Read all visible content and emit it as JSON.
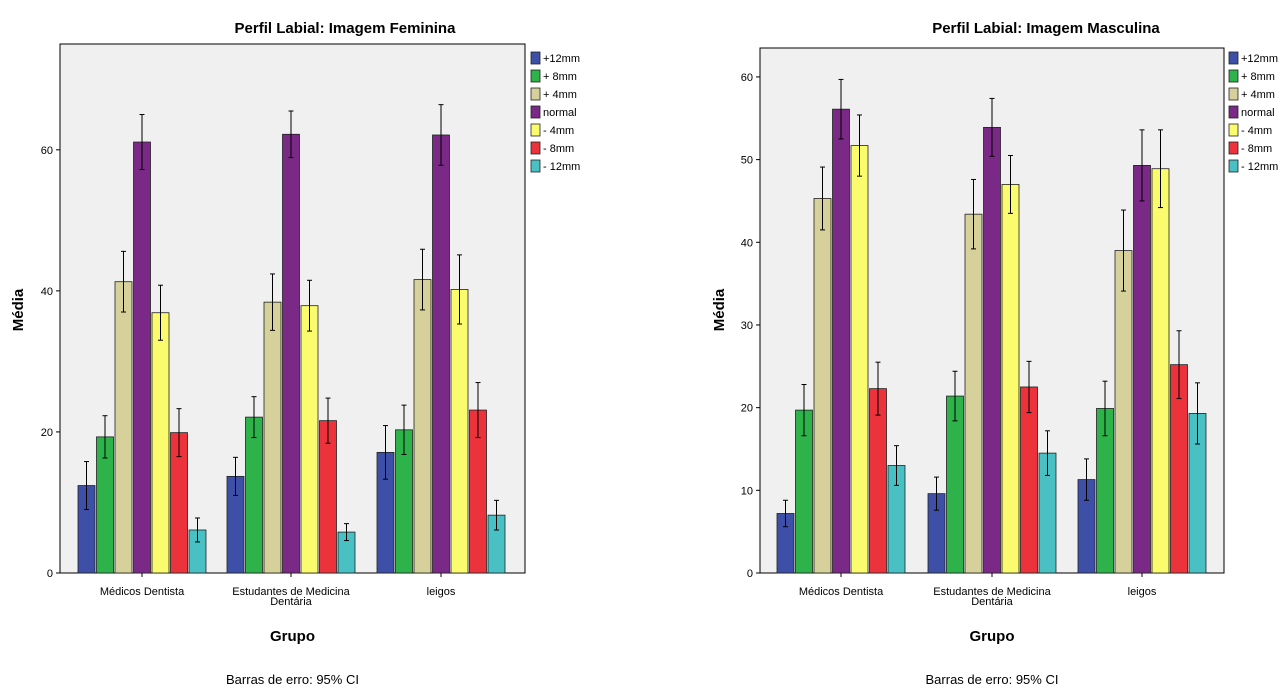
{
  "chart_data": [
    {
      "type": "bar",
      "title": "Perfil Labial: Imagem Feminina",
      "xlabel": "Grupo",
      "ylabel": "Média",
      "footnote": "Barras de erro: 95% CI",
      "ylim": [
        0,
        75
      ],
      "yticks": [
        0,
        20,
        40,
        60
      ],
      "categories": [
        [
          "Médicos Dentista"
        ],
        [
          "Estudantes de Medicina",
          "Dentária"
        ],
        [
          "leigos"
        ]
      ],
      "legend": "top-right",
      "grid": false,
      "series": [
        {
          "name": "+12mm",
          "color": "#3d4fa6",
          "values": [
            12.4,
            13.7,
            17.1
          ],
          "ci_low": [
            9.0,
            11.0,
            13.3
          ],
          "ci_high": [
            15.8,
            16.4,
            20.9
          ]
        },
        {
          "name": "+ 8mm",
          "color": "#2db34a",
          "values": [
            19.3,
            22.1,
            20.3
          ],
          "ci_low": [
            16.3,
            19.2,
            16.8
          ],
          "ci_high": [
            22.3,
            25.0,
            23.8
          ]
        },
        {
          "name": "+ 4mm",
          "color": "#d6d19a",
          "values": [
            41.3,
            38.4,
            41.6
          ],
          "ci_low": [
            37.0,
            34.4,
            37.3
          ],
          "ci_high": [
            45.6,
            42.4,
            45.9
          ]
        },
        {
          "name": "normal",
          "color": "#7a2a86",
          "values": [
            61.1,
            62.2,
            62.1
          ],
          "ci_low": [
            57.2,
            58.9,
            57.8
          ],
          "ci_high": [
            65.0,
            65.5,
            66.4
          ]
        },
        {
          "name": "- 4mm",
          "color": "#fbfb6e",
          "values": [
            36.9,
            37.9,
            40.2
          ],
          "ci_low": [
            33.0,
            34.3,
            35.3
          ],
          "ci_high": [
            40.8,
            41.5,
            45.1
          ]
        },
        {
          "name": "- 8mm",
          "color": "#ec333b",
          "values": [
            19.9,
            21.6,
            23.1
          ],
          "ci_low": [
            16.5,
            18.4,
            19.2
          ],
          "ci_high": [
            23.3,
            24.8,
            27.0
          ]
        },
        {
          "name": "- 12mm",
          "color": "#48c0c4",
          "values": [
            6.1,
            5.8,
            8.2
          ],
          "ci_low": [
            4.4,
            4.6,
            6.1
          ],
          "ci_high": [
            7.8,
            7.0,
            10.3
          ]
        }
      ]
    },
    {
      "type": "bar",
      "title": "Perfil Labial: Imagem Masculina",
      "xlabel": "Grupo",
      "ylabel": "Média",
      "footnote": "Barras de erro: 95% CI",
      "ylim": [
        0,
        63.5
      ],
      "yticks": [
        0,
        10,
        20,
        30,
        40,
        50,
        60
      ],
      "categories": [
        [
          "Médicos Dentista"
        ],
        [
          "Estudantes de Medicina",
          "Dentária"
        ],
        [
          "leigos"
        ]
      ],
      "legend": "top-right",
      "grid": false,
      "series": [
        {
          "name": "+12mm",
          "color": "#3d4fa6",
          "values": [
            7.2,
            9.6,
            11.3
          ],
          "ci_low": [
            5.6,
            7.6,
            8.8
          ],
          "ci_high": [
            8.8,
            11.6,
            13.8
          ]
        },
        {
          "name": "+ 8mm",
          "color": "#2db34a",
          "values": [
            19.7,
            21.4,
            19.9
          ],
          "ci_low": [
            16.6,
            18.4,
            16.6
          ],
          "ci_high": [
            22.8,
            24.4,
            23.2
          ]
        },
        {
          "name": "+ 4mm",
          "color": "#d6d19a",
          "values": [
            45.3,
            43.4,
            39.0
          ],
          "ci_low": [
            41.5,
            39.2,
            34.1
          ],
          "ci_high": [
            49.1,
            47.6,
            43.9
          ]
        },
        {
          "name": "normal",
          "color": "#7a2a86",
          "values": [
            56.1,
            53.9,
            49.3
          ],
          "ci_low": [
            52.5,
            50.4,
            45.0
          ],
          "ci_high": [
            59.7,
            57.4,
            53.6
          ]
        },
        {
          "name": "- 4mm",
          "color": "#fbfb6e",
          "values": [
            51.7,
            47.0,
            48.9
          ],
          "ci_low": [
            48.0,
            43.5,
            44.2
          ],
          "ci_high": [
            55.4,
            50.5,
            53.6
          ]
        },
        {
          "name": "- 8mm",
          "color": "#ec333b",
          "values": [
            22.3,
            22.5,
            25.2
          ],
          "ci_low": [
            19.1,
            19.4,
            21.1
          ],
          "ci_high": [
            25.5,
            25.6,
            29.3
          ]
        },
        {
          "name": "- 12mm",
          "color": "#48c0c4",
          "values": [
            13.0,
            14.5,
            19.3
          ],
          "ci_low": [
            10.6,
            11.8,
            15.6
          ],
          "ci_high": [
            15.4,
            17.2,
            23.0
          ]
        }
      ]
    }
  ]
}
